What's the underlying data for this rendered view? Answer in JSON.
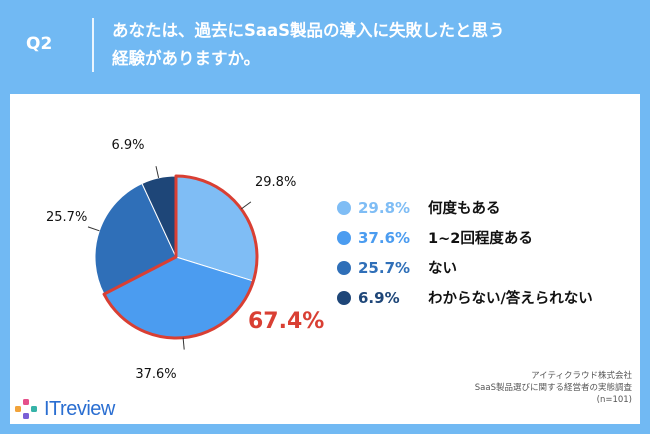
{
  "header": {
    "question_label": "Q2",
    "question_lines": [
      "あなたは、過去にSaaS製品の導入に失敗したと思う",
      "経験がありますか。"
    ]
  },
  "chart_data": {
    "type": "pie",
    "slices": [
      {
        "label": "何度もある",
        "value": 29.8,
        "value_text": "29.8%",
        "color": "#7fbdf5"
      },
      {
        "label": "1~2回程度ある",
        "value": 37.6,
        "value_text": "37.6%",
        "color": "#4b9cf0"
      },
      {
        "label": "ない",
        "value": 25.7,
        "value_text": "25.7%",
        "color": "#2f6fb8"
      },
      {
        "label": "わからない/答えられない",
        "value": 6.9,
        "value_text": "6.9%",
        "color": "#1e4678"
      }
    ],
    "highlight": {
      "value_text": "67.4%",
      "color": "#d93f33"
    },
    "legend_placement": "right"
  },
  "footer": {
    "lines": [
      "アイティクラウド株式会社",
      "SaaS製品選びに関する経営者の実態調査",
      "(n=101)"
    ]
  },
  "brand": {
    "text": "ITreview"
  },
  "colors": {
    "background": "#71b9f3",
    "panel": "#ffffff",
    "highlight": "#d93f33"
  }
}
